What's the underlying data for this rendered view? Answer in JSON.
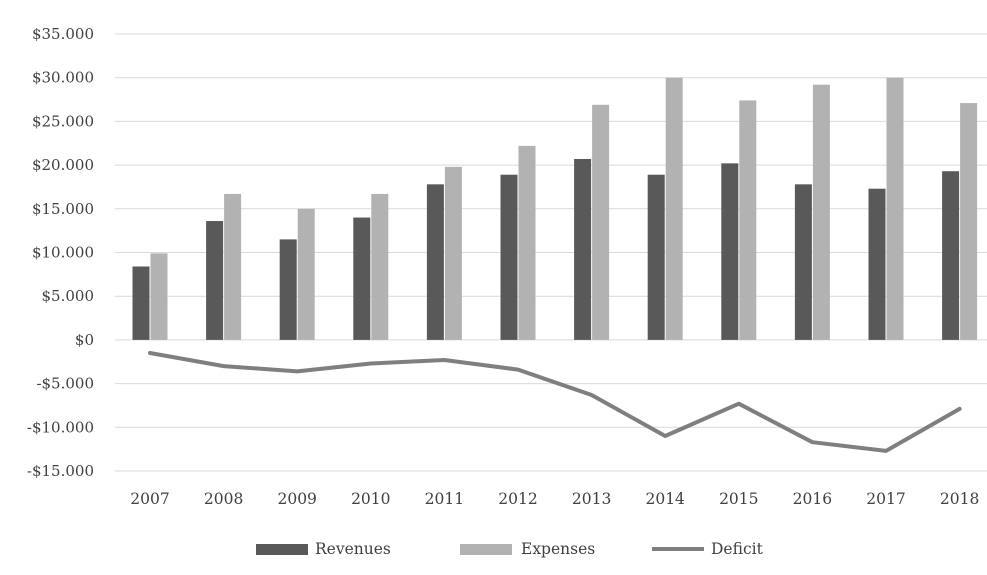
{
  "chart_data": {
    "type": "bar",
    "categories": [
      "2007",
      "2008",
      "2009",
      "2010",
      "2011",
      "2012",
      "2013",
      "2014",
      "2015",
      "2016",
      "2017",
      "2018"
    ],
    "series": [
      {
        "name": "Revenues",
        "type": "bar",
        "color": "#595959",
        "values": [
          8400,
          13600,
          11500,
          14000,
          17800,
          18900,
          20700,
          18900,
          20200,
          17800,
          17300,
          19300
        ]
      },
      {
        "name": "Expenses",
        "type": "bar",
        "color": "#b2b2b2",
        "values": [
          9900,
          16700,
          15000,
          16700,
          19800,
          22200,
          26900,
          30000,
          27400,
          29200,
          30000,
          27100
        ]
      },
      {
        "name": "Deficit",
        "type": "line",
        "color": "#7f7f7f",
        "values": [
          -1500,
          -3000,
          -3600,
          -2700,
          -2300,
          -3400,
          -6300,
          -11000,
          -7300,
          -11700,
          -12700,
          -7900
        ]
      }
    ],
    "ylim": [
      -15000,
      35000
    ],
    "yticks": [
      35000,
      30000,
      25000,
      20000,
      15000,
      10000,
      5000,
      0,
      -5000,
      -10000,
      -15000
    ],
    "ytick_labels": [
      "$35.000",
      "$30.000",
      "$25.000",
      "$20.000",
      "$15.000",
      "$10.000",
      "$5.000",
      "$0",
      "-$5.000",
      "-$10.000",
      "-$15.000"
    ],
    "grid": "horizontal",
    "legend_position": "bottom",
    "title": "",
    "xlabel": "",
    "ylabel": ""
  }
}
